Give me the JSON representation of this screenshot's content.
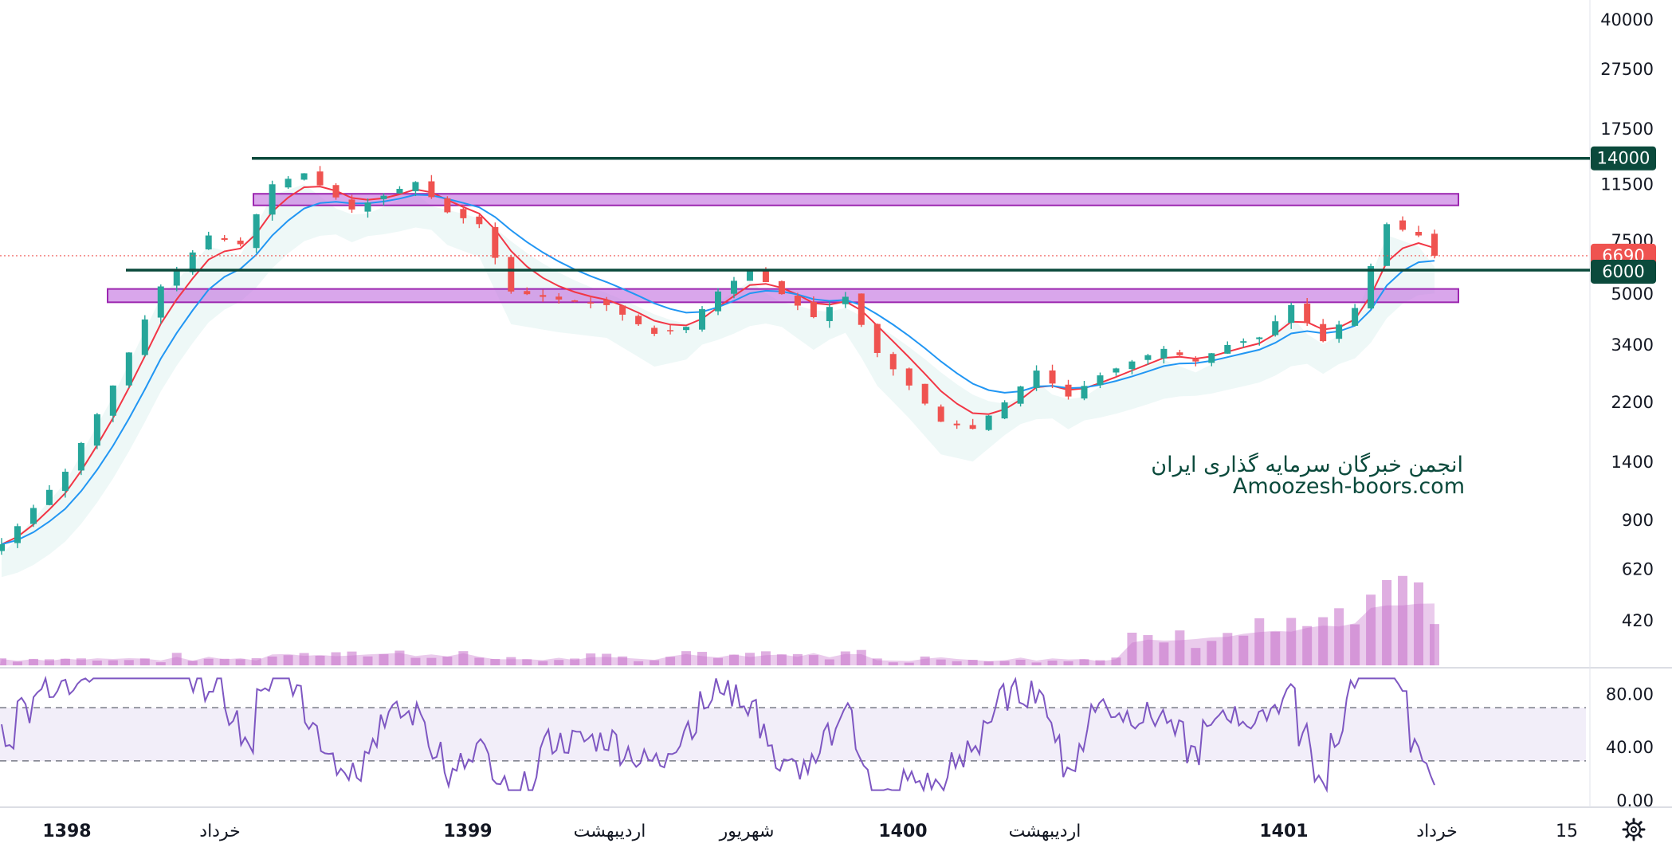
{
  "chart_data": {
    "type": "candlestick",
    "scale": "log",
    "price_axis": {
      "ticks": [
        "40000",
        "27500",
        "17500",
        "11500",
        "7500",
        "5000",
        "3400",
        "2200",
        "1400",
        "900",
        "620",
        "420"
      ],
      "tick_values": [
        40000,
        27500,
        17500,
        11500,
        7500,
        5000,
        3400,
        2200,
        1400,
        900,
        620,
        420
      ]
    },
    "rsi_axis": {
      "ticks": [
        "80.00",
        "40.00",
        "0.00"
      ],
      "tick_values": [
        80,
        40,
        0
      ],
      "upper_band": 70,
      "lower_band": 30
    },
    "time_axis": {
      "labels": [
        "1398",
        "خرداد",
        "1399",
        "اردیبهشت",
        "شهریور",
        "1400",
        "اردیبهشت",
        "1401",
        "خرداد",
        "15"
      ],
      "bold": [
        true,
        false,
        true,
        false,
        false,
        true,
        false,
        true,
        false,
        false
      ]
    },
    "price_badges": [
      {
        "label": "14000",
        "value": 14000,
        "color": "#0b4a3c"
      },
      {
        "label": "6690",
        "value": 6690,
        "color": "#ef5350"
      },
      {
        "label": "6000",
        "value": 6000,
        "color": "#0b4a3c"
      }
    ],
    "horizontal_levels": [
      14000,
      6000
    ],
    "current_price": 6690,
    "zones": [
      {
        "low": 9800,
        "high": 10700
      },
      {
        "low": 4700,
        "high": 5200
      }
    ],
    "price_path": [
      [
        0,
        750
      ],
      [
        4,
        1300
      ],
      [
        7,
        2500
      ],
      [
        10,
        5300
      ],
      [
        13,
        7800
      ],
      [
        15,
        7300
      ],
      [
        17,
        11500
      ],
      [
        19,
        12500
      ],
      [
        22,
        9500
      ],
      [
        26,
        11700
      ],
      [
        28,
        9300
      ],
      [
        30,
        8500
      ],
      [
        32,
        5100
      ],
      [
        35,
        4800
      ],
      [
        38,
        4600
      ],
      [
        41,
        3700
      ],
      [
        43,
        3900
      ],
      [
        45,
        5100
      ],
      [
        47,
        6000
      ],
      [
        49,
        5000
      ],
      [
        51,
        4200
      ],
      [
        53,
        4900
      ],
      [
        55,
        3200
      ],
      [
        57,
        2500
      ],
      [
        59,
        1900
      ],
      [
        61,
        1800
      ],
      [
        63,
        2200
      ],
      [
        65,
        2800
      ],
      [
        67,
        2300
      ],
      [
        69,
        2700
      ],
      [
        71,
        3000
      ],
      [
        73,
        3300
      ],
      [
        75,
        3000
      ],
      [
        77,
        3400
      ],
      [
        79,
        3600
      ],
      [
        81,
        4600
      ],
      [
        83,
        3500
      ],
      [
        85,
        4500
      ],
      [
        87,
        8500
      ],
      [
        89,
        7800
      ],
      [
        90,
        6690
      ]
    ],
    "overlays": {
      "ma_fast": {
        "color": "#f23645"
      },
      "ma_slow": {
        "color": "#2196f3"
      },
      "band": {
        "color": "#26a69a"
      }
    },
    "colors": {
      "up": "#26a69a",
      "down": "#ef5350",
      "volume": "#c46bc8",
      "rsi": "#7e57c2",
      "zone_fill": "#c576e0",
      "zone_border": "#9c27b0",
      "level": "#0b4a3c"
    }
  },
  "watermark": {
    "line1": "انجمن خبرگان سرمایه گذاری ایران",
    "line2": "Amoozesh-boors.com"
  },
  "settings_icon": "gear-icon"
}
